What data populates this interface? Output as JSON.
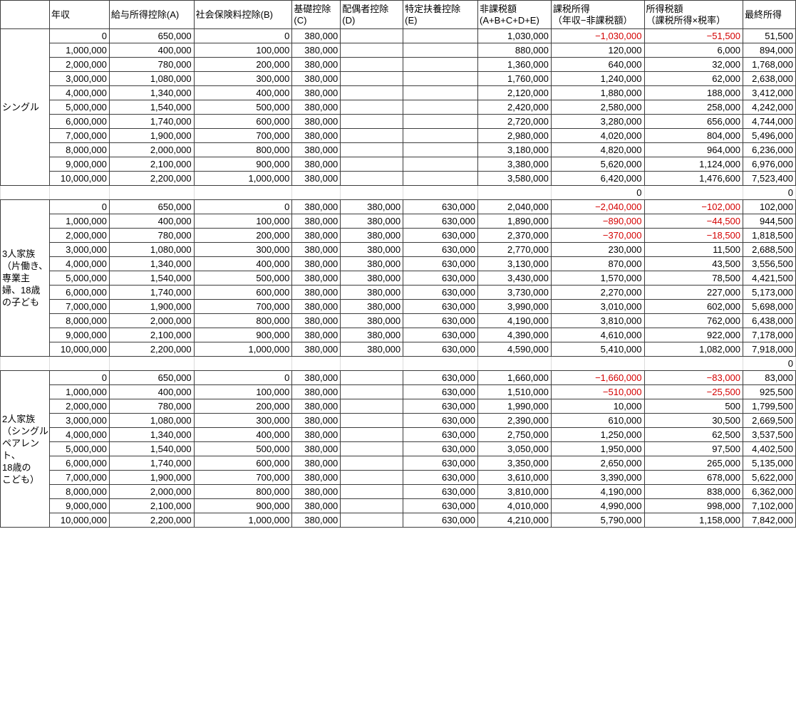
{
  "colors": {
    "background": "#ffffff",
    "text": "#000000",
    "negative_text": "#d40000",
    "grid_line": "#3d3d3d",
    "spacer_grid_line": "#dcdcdc"
  },
  "table": {
    "columns": [
      "",
      "年収",
      "給与所得控除(A)",
      "社会保険料控除(B)",
      "基礎控除\n(C)",
      "配偶者控除\n(D)",
      "特定扶養控除\n(E)",
      "非課税額\n(A+B+C+D+E)",
      "課税所得\n（年収−非課税額）",
      "所得税額\n（課税所得×税率）",
      "最終所得"
    ],
    "groups": [
      {
        "label": "シングル",
        "rows": [
          [
            "0",
            "650,000",
            "0",
            "380,000",
            "",
            "",
            "1,030,000",
            "−1,030,000",
            "−51,500",
            "51,500"
          ],
          [
            "1,000,000",
            "400,000",
            "100,000",
            "380,000",
            "",
            "",
            "880,000",
            "120,000",
            "6,000",
            "894,000"
          ],
          [
            "2,000,000",
            "780,000",
            "200,000",
            "380,000",
            "",
            "",
            "1,360,000",
            "640,000",
            "32,000",
            "1,768,000"
          ],
          [
            "3,000,000",
            "1,080,000",
            "300,000",
            "380,000",
            "",
            "",
            "1,760,000",
            "1,240,000",
            "62,000",
            "2,638,000"
          ],
          [
            "4,000,000",
            "1,340,000",
            "400,000",
            "380,000",
            "",
            "",
            "2,120,000",
            "1,880,000",
            "188,000",
            "3,412,000"
          ],
          [
            "5,000,000",
            "1,540,000",
            "500,000",
            "380,000",
            "",
            "",
            "2,420,000",
            "2,580,000",
            "258,000",
            "4,242,000"
          ],
          [
            "6,000,000",
            "1,740,000",
            "600,000",
            "380,000",
            "",
            "",
            "2,720,000",
            "3,280,000",
            "656,000",
            "4,744,000"
          ],
          [
            "7,000,000",
            "1,900,000",
            "700,000",
            "380,000",
            "",
            "",
            "2,980,000",
            "4,020,000",
            "804,000",
            "5,496,000"
          ],
          [
            "8,000,000",
            "2,000,000",
            "800,000",
            "380,000",
            "",
            "",
            "3,180,000",
            "4,820,000",
            "964,000",
            "6,236,000"
          ],
          [
            "9,000,000",
            "2,100,000",
            "900,000",
            "380,000",
            "",
            "",
            "3,380,000",
            "5,620,000",
            "1,124,000",
            "6,976,000"
          ],
          [
            "10,000,000",
            "2,200,000",
            "1,000,000",
            "380,000",
            "",
            "",
            "3,580,000",
            "6,420,000",
            "1,476,600",
            "7,523,400"
          ]
        ],
        "spacer_after": [
          "",
          "",
          "",
          "",
          "",
          "",
          "",
          "0",
          "",
          "0"
        ]
      },
      {
        "label": "3人家族\n（片働き、\n専業主\n婦、18歳\nの子ども",
        "rows": [
          [
            "0",
            "650,000",
            "0",
            "380,000",
            "380,000",
            "630,000",
            "2,040,000",
            "−2,040,000",
            "−102,000",
            "102,000"
          ],
          [
            "1,000,000",
            "400,000",
            "100,000",
            "380,000",
            "380,000",
            "630,000",
            "1,890,000",
            "−890,000",
            "−44,500",
            "944,500"
          ],
          [
            "2,000,000",
            "780,000",
            "200,000",
            "380,000",
            "380,000",
            "630,000",
            "2,370,000",
            "−370,000",
            "−18,500",
            "1,818,500"
          ],
          [
            "3,000,000",
            "1,080,000",
            "300,000",
            "380,000",
            "380,000",
            "630,000",
            "2,770,000",
            "230,000",
            "11,500",
            "2,688,500"
          ],
          [
            "4,000,000",
            "1,340,000",
            "400,000",
            "380,000",
            "380,000",
            "630,000",
            "3,130,000",
            "870,000",
            "43,500",
            "3,556,500"
          ],
          [
            "5,000,000",
            "1,540,000",
            "500,000",
            "380,000",
            "380,000",
            "630,000",
            "3,430,000",
            "1,570,000",
            "78,500",
            "4,421,500"
          ],
          [
            "6,000,000",
            "1,740,000",
            "600,000",
            "380,000",
            "380,000",
            "630,000",
            "3,730,000",
            "2,270,000",
            "227,000",
            "5,173,000"
          ],
          [
            "7,000,000",
            "1,900,000",
            "700,000",
            "380,000",
            "380,000",
            "630,000",
            "3,990,000",
            "3,010,000",
            "602,000",
            "5,698,000"
          ],
          [
            "8,000,000",
            "2,000,000",
            "800,000",
            "380,000",
            "380,000",
            "630,000",
            "4,190,000",
            "3,810,000",
            "762,000",
            "6,438,000"
          ],
          [
            "9,000,000",
            "2,100,000",
            "900,000",
            "380,000",
            "380,000",
            "630,000",
            "4,390,000",
            "4,610,000",
            "922,000",
            "7,178,000"
          ],
          [
            "10,000,000",
            "2,200,000",
            "1,000,000",
            "380,000",
            "380,000",
            "630,000",
            "4,590,000",
            "5,410,000",
            "1,082,000",
            "7,918,000"
          ]
        ],
        "spacer_after": [
          "",
          "",
          "",
          "",
          "",
          "",
          "",
          "",
          "",
          "0"
        ]
      },
      {
        "label": "2人家族\n（シングル\nペアレン\nト、18歳の\nこども）",
        "rows": [
          [
            "0",
            "650,000",
            "0",
            "380,000",
            "",
            "630,000",
            "1,660,000",
            "−1,660,000",
            "−83,000",
            "83,000"
          ],
          [
            "1,000,000",
            "400,000",
            "100,000",
            "380,000",
            "",
            "630,000",
            "1,510,000",
            "−510,000",
            "−25,500",
            "925,500"
          ],
          [
            "2,000,000",
            "780,000",
            "200,000",
            "380,000",
            "",
            "630,000",
            "1,990,000",
            "10,000",
            "500",
            "1,799,500"
          ],
          [
            "3,000,000",
            "1,080,000",
            "300,000",
            "380,000",
            "",
            "630,000",
            "2,390,000",
            "610,000",
            "30,500",
            "2,669,500"
          ],
          [
            "4,000,000",
            "1,340,000",
            "400,000",
            "380,000",
            "",
            "630,000",
            "2,750,000",
            "1,250,000",
            "62,500",
            "3,537,500"
          ],
          [
            "5,000,000",
            "1,540,000",
            "500,000",
            "380,000",
            "",
            "630,000",
            "3,050,000",
            "1,950,000",
            "97,500",
            "4,402,500"
          ],
          [
            "6,000,000",
            "1,740,000",
            "600,000",
            "380,000",
            "",
            "630,000",
            "3,350,000",
            "2,650,000",
            "265,000",
            "5,135,000"
          ],
          [
            "7,000,000",
            "1,900,000",
            "700,000",
            "380,000",
            "",
            "630,000",
            "3,610,000",
            "3,390,000",
            "678,000",
            "5,622,000"
          ],
          [
            "8,000,000",
            "2,000,000",
            "800,000",
            "380,000",
            "",
            "630,000",
            "3,810,000",
            "4,190,000",
            "838,000",
            "6,362,000"
          ],
          [
            "9,000,000",
            "2,100,000",
            "900,000",
            "380,000",
            "",
            "630,000",
            "4,010,000",
            "4,990,000",
            "998,000",
            "7,102,000"
          ],
          [
            "10,000,000",
            "2,200,000",
            "1,000,000",
            "380,000",
            "",
            "630,000",
            "4,210,000",
            "5,790,000",
            "1,158,000",
            "7,842,000"
          ]
        ],
        "spacer_after": null
      }
    ]
  }
}
